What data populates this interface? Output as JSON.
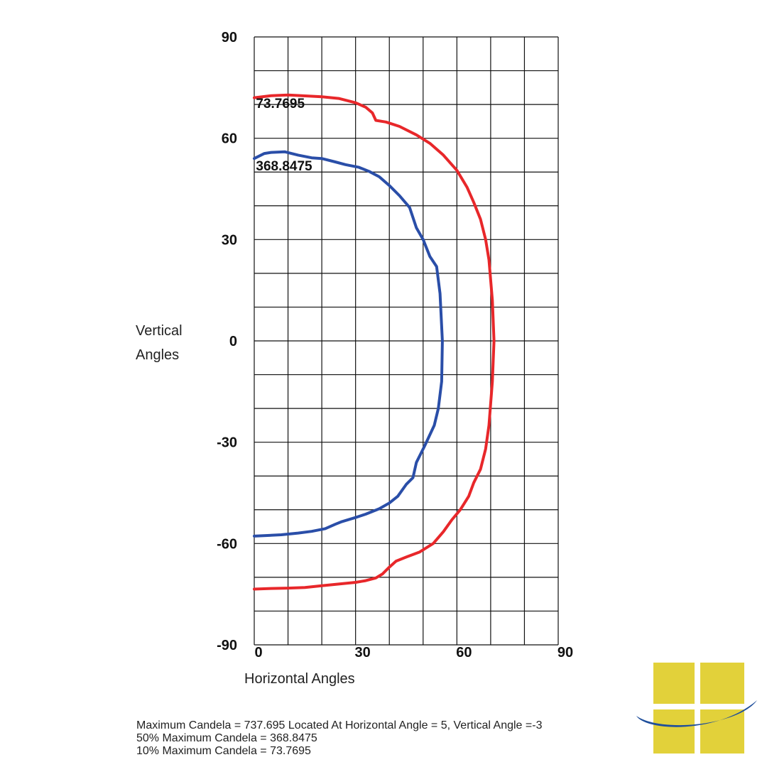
{
  "chart_data": {
    "type": "line",
    "title": "",
    "xlabel": "Horizontal Angles",
    "ylabel": "Vertical Angles",
    "xlim": [
      0,
      90
    ],
    "ylim": [
      -90,
      90
    ],
    "x_ticks": [
      0,
      30,
      60,
      90
    ],
    "y_ticks": [
      90,
      60,
      30,
      0,
      -30,
      -60,
      -90
    ],
    "x_tick_labels": [
      "0",
      "30",
      "60",
      "90"
    ],
    "y_tick_labels": [
      "90",
      "60",
      "30",
      "0",
      "-30",
      "-60",
      "-90"
    ],
    "grid": true,
    "legend": "none",
    "series": [
      {
        "label": "73.7695",
        "color": "#e8272a",
        "points": [
          [
            0,
            72
          ],
          [
            5,
            72.6
          ],
          [
            10,
            72.8
          ],
          [
            20,
            72.3
          ],
          [
            25,
            71.8
          ],
          [
            30,
            70.5
          ],
          [
            33,
            69.2
          ],
          [
            35,
            67.5
          ],
          [
            36,
            65.3
          ],
          [
            39,
            64.8
          ],
          [
            43,
            63.5
          ],
          [
            48,
            61
          ],
          [
            52,
            58.5
          ],
          [
            56,
            55
          ],
          [
            60,
            50.5
          ],
          [
            63,
            45.5
          ],
          [
            65,
            41
          ],
          [
            67,
            36
          ],
          [
            68.5,
            30
          ],
          [
            69.5,
            24
          ],
          [
            70.5,
            12
          ],
          [
            71,
            0
          ],
          [
            70.5,
            -12
          ],
          [
            69.5,
            -25
          ],
          [
            68.5,
            -32
          ],
          [
            67,
            -38
          ],
          [
            65,
            -42
          ],
          [
            63.5,
            -46
          ],
          [
            61,
            -50
          ],
          [
            58.5,
            -53
          ],
          [
            56,
            -56.5
          ],
          [
            53,
            -60
          ],
          [
            49,
            -62.5
          ],
          [
            45,
            -64
          ],
          [
            42,
            -65.2
          ],
          [
            40,
            -67
          ],
          [
            38,
            -69
          ],
          [
            36,
            -70.2
          ],
          [
            33,
            -71
          ],
          [
            30,
            -71.5
          ],
          [
            25,
            -72
          ],
          [
            20,
            -72.5
          ],
          [
            15,
            -73
          ],
          [
            10,
            -73.2
          ],
          [
            5,
            -73.3
          ],
          [
            0,
            -73.5
          ]
        ]
      },
      {
        "label": "368.8475",
        "color": "#2a4ea8",
        "points": [
          [
            0,
            54
          ],
          [
            3,
            55.5
          ],
          [
            5,
            55.8
          ],
          [
            9,
            56
          ],
          [
            13,
            55
          ],
          [
            17,
            54.2
          ],
          [
            20,
            54
          ],
          [
            24,
            53
          ],
          [
            27,
            52.2
          ],
          [
            31,
            51.4
          ],
          [
            34,
            50.2
          ],
          [
            37,
            48.6
          ],
          [
            40,
            46
          ],
          [
            43,
            43
          ],
          [
            46,
            39.5
          ],
          [
            48,
            33.5
          ],
          [
            50,
            30
          ],
          [
            52,
            25
          ],
          [
            54,
            22
          ],
          [
            55,
            14
          ],
          [
            55.7,
            0
          ],
          [
            55.5,
            -12
          ],
          [
            54.5,
            -20
          ],
          [
            53.3,
            -25
          ],
          [
            50.5,
            -31
          ],
          [
            48,
            -36
          ],
          [
            47,
            -40.5
          ],
          [
            45,
            -42.5
          ],
          [
            42.5,
            -46
          ],
          [
            40,
            -48
          ],
          [
            37,
            -49.7
          ],
          [
            33,
            -51.3
          ],
          [
            30,
            -52.3
          ],
          [
            26,
            -53.5
          ],
          [
            24,
            -54.3
          ],
          [
            21,
            -55.6
          ],
          [
            17,
            -56.4
          ],
          [
            13,
            -56.9
          ],
          [
            8,
            -57.4
          ],
          [
            0,
            -57.8
          ]
        ]
      }
    ],
    "annotations": [
      {
        "text": "73.7695",
        "x": 0.5,
        "y": 69
      },
      {
        "text": "368.8475",
        "x": 0.5,
        "y": 50.5
      }
    ]
  },
  "footer": {
    "line1": "Maximum Candela = 737.695    Located At Horizontal Angle = 5, Vertical Angle =-3",
    "line2": "50% Maximum Candela = 368.8475",
    "line3": "10% Maximum Candela = 73.7695"
  },
  "logo": {
    "squares_color": "#e2d13a",
    "swoosh_color": "#1f4f9c"
  }
}
